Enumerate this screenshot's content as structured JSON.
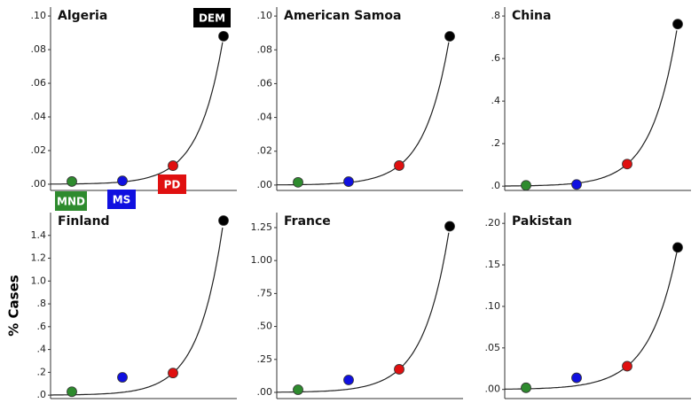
{
  "ylabel": "% Cases",
  "chart_data": [
    {
      "type": "scatter",
      "title": "Algeria",
      "categories": [
        "MND",
        "MS",
        "PD",
        "DEM"
      ],
      "colors": [
        "#2e8b2e",
        "#1010e0",
        "#e01010",
        "#000000"
      ],
      "values": [
        0.0016,
        0.002,
        0.011,
        0.088
      ],
      "ylim": [
        -0.0037,
        0.1053
      ],
      "yticks": [
        {
          "value": 0,
          "label": ".00"
        },
        {
          "value": 0.02,
          "label": ".02"
        },
        {
          "value": 0.04,
          "label": ".04"
        },
        {
          "value": 0.06,
          "label": ".06"
        },
        {
          "value": 0.08,
          "label": ".08"
        },
        {
          "value": 0.1,
          "label": ".10"
        }
      ]
    },
    {
      "type": "scatter",
      "title": "American Samoa",
      "colors": [
        "#2e8b2e",
        "#1010e0",
        "#e01010",
        "#000000"
      ],
      "values": [
        0.0016,
        0.002,
        0.0115,
        0.088
      ],
      "ylim": [
        -0.0032,
        0.1053
      ],
      "yticks": [
        {
          "value": 0,
          "label": ".00"
        },
        {
          "value": 0.02,
          "label": ".02"
        },
        {
          "value": 0.04,
          "label": ".04"
        },
        {
          "value": 0.06,
          "label": ".06"
        },
        {
          "value": 0.08,
          "label": ".08"
        },
        {
          "value": 0.1,
          "label": ".10"
        }
      ]
    },
    {
      "type": "scatter",
      "title": "China",
      "colors": [
        "#2e8b2e",
        "#1010e0",
        "#e01010",
        "#000000"
      ],
      "values": [
        0.004,
        0.008,
        0.104,
        0.762
      ],
      "ylim": [
        -0.02,
        0.842
      ],
      "yticks": [
        {
          "value": 0,
          "label": ".0"
        },
        {
          "value": 0.2,
          "label": ".2"
        },
        {
          "value": 0.4,
          "label": ".4"
        },
        {
          "value": 0.6,
          "label": ".6"
        },
        {
          "value": 0.8,
          "label": ".8"
        }
      ]
    },
    {
      "type": "scatter",
      "title": "Finland",
      "colors": [
        "#2e8b2e",
        "#1010e0",
        "#e01010",
        "#000000"
      ],
      "values": [
        0.03,
        0.156,
        0.194,
        1.53
      ],
      "ylim": [
        -0.03,
        1.6
      ],
      "yticks": [
        {
          "value": 0,
          "label": ".0"
        },
        {
          "value": 0.2,
          "label": ".2"
        },
        {
          "value": 0.4,
          "label": ".4"
        },
        {
          "value": 0.6,
          "label": ".6"
        },
        {
          "value": 0.8,
          "label": ".8"
        },
        {
          "value": 1.0,
          "label": "1.0"
        },
        1.2,
        1.4
      ]
    },
    {
      "type": "scatter",
      "title": "France",
      "colors": [
        "#2e8b2e",
        "#1010e0",
        "#e01010",
        "#000000"
      ],
      "values": [
        0.02,
        0.094,
        0.175,
        1.26
      ],
      "ylim": [
        -0.047,
        1.364
      ],
      "yticks": [
        {
          "value": 0,
          "label": ".00"
        },
        {
          "value": 0.25,
          "label": ".25"
        },
        {
          "value": 0.5,
          "label": ".50"
        },
        {
          "value": 0.75,
          "label": ".75"
        },
        {
          "value": 1.0,
          "label": "1.00"
        },
        1.25
      ]
    },
    {
      "type": "scatter",
      "title": "Pakistan",
      "colors": [
        "#2e8b2e",
        "#1010e0",
        "#e01010",
        "#000000"
      ],
      "values": [
        0.002,
        0.014,
        0.028,
        0.171
      ],
      "ylim": [
        -0.011,
        0.213
      ],
      "yticks": [
        {
          "value": 0,
          "label": ".00"
        },
        {
          "value": 0.05,
          "label": ".05"
        },
        {
          "value": 0.1,
          "label": ".10"
        },
        {
          "value": 0.15,
          "label": ".15"
        },
        {
          "value": 0.2,
          "label": ".20"
        }
      ]
    }
  ]
}
